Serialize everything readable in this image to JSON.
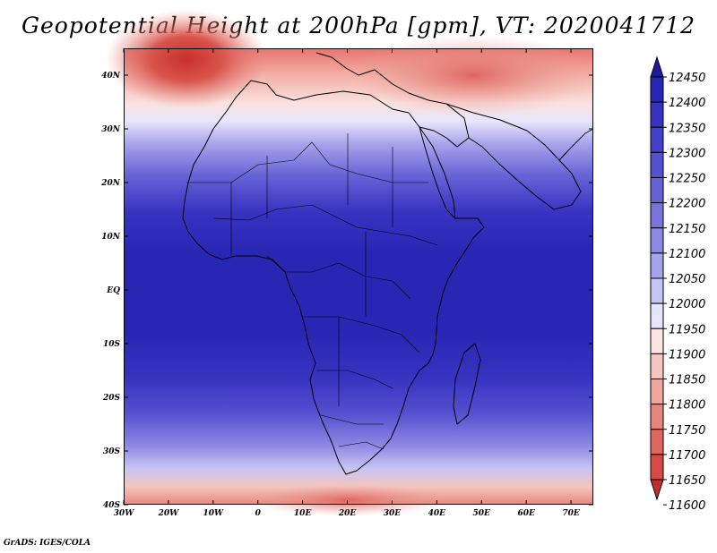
{
  "title": "Geopotential Height at 200hPa [gpm], VT: 2020041712",
  "credit": "GrADS: IGES/COLA",
  "map": {
    "lon_labels": [
      "30W",
      "20W",
      "10W",
      "0",
      "10E",
      "20E",
      "30E",
      "40E",
      "50E",
      "60E",
      "70E"
    ],
    "lat_labels": [
      "40N",
      "30N",
      "20N",
      "10N",
      "EQ",
      "10S",
      "20S",
      "30S",
      "40S"
    ],
    "lon_range": [
      -30,
      75
    ],
    "lat_range": [
      -40,
      45
    ]
  },
  "colorbar": {
    "levels": [
      "12450",
      "12400",
      "12350",
      "12300",
      "12250",
      "12200",
      "12150",
      "12100",
      "12050",
      "12000",
      "11950",
      "11900",
      "11850",
      "11800",
      "11750",
      "11700",
      "11650",
      "11600"
    ],
    "colors": [
      "#1e1aa0",
      "#2a26b4",
      "#3732c0",
      "#4540c8",
      "#5550cf",
      "#6662d6",
      "#7874dc",
      "#8c88e3",
      "#a6a3eb",
      "#c6c4f4",
      "#e6e5fb",
      "#fbe6e3",
      "#f5c6bf",
      "#eea79e",
      "#e6877e",
      "#de675f",
      "#d54a44",
      "#c42d2d"
    ]
  }
}
